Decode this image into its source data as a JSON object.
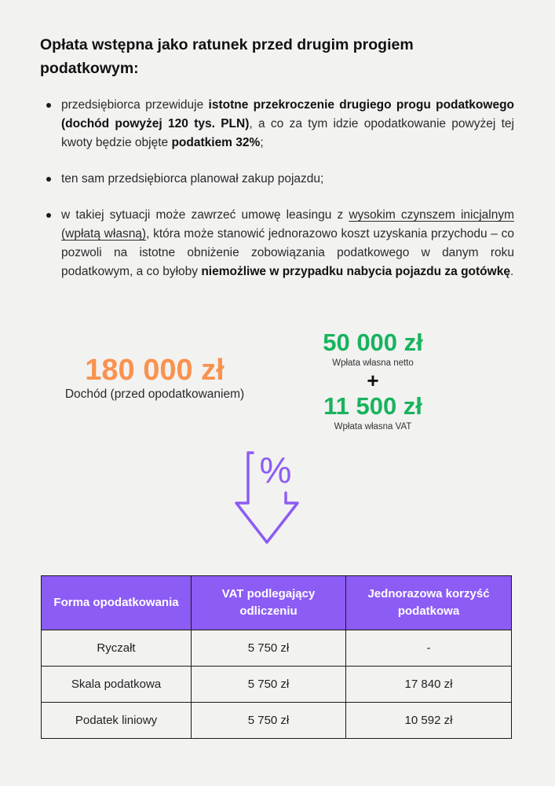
{
  "title": "Opłata wstępna jako ratunek przed drugim progiem podatkowym:",
  "bullets": {
    "b1": {
      "t1": "przedsiębiorca przewiduje ",
      "bold1": "istotne przekroczenie drugiego progu podatkowego (dochód powyżej 120 tys. PLN)",
      "t2": ", a co za tym idzie opodatkowanie powyżej tej kwoty będzie objęte ",
      "bold2": "podatkiem 32%",
      "t3": ";"
    },
    "b2": {
      "t1": "ten sam przedsiębiorca planował zakup pojazdu;"
    },
    "b3": {
      "t1": "w takiej sytuacji może zawrzeć umowę leasingu z ",
      "underline": "wysokim czynszem inicjalnym (wpłatą własną)",
      "t2": ", która może stanowić jednorazowo koszt uzyskania przychodu – co pozwoli na istotne obniżenie zobowiązania podatkowego w danym roku podatkowym, a co byłoby ",
      "bold": "niemożliwe w przypadku nabycia pojazdu za gotówkę",
      "t3": "."
    }
  },
  "income": {
    "amount": "180 000 zł",
    "label": "Dochód (przed opodatkowaniem)"
  },
  "payments": {
    "net": {
      "amount": "50 000 zł",
      "label": "Wpłata własna netto"
    },
    "plus": "+",
    "vat": {
      "amount": "11 500 zł",
      "label": "Wpłata własna VAT"
    }
  },
  "icon": {
    "name": "percent-down-arrow-icon",
    "symbol": "%",
    "color": "#8c5cf5"
  },
  "colors": {
    "accent_purple": "#8c5cf5",
    "income_orange": "#f9924f",
    "payment_green": "#18b35e"
  },
  "table": {
    "headers": [
      "Forma opodatkowania",
      "VAT podlegający odliczeniu",
      "Jednorazowa korzyść podatkowa"
    ],
    "rows": [
      [
        "Ryczałt",
        "5 750 zł",
        "-"
      ],
      [
        "Skala podatkowa",
        "5 750 zł",
        "17 840 zł"
      ],
      [
        "Podatek liniowy",
        "5 750 zł",
        "10 592 zł"
      ]
    ]
  }
}
